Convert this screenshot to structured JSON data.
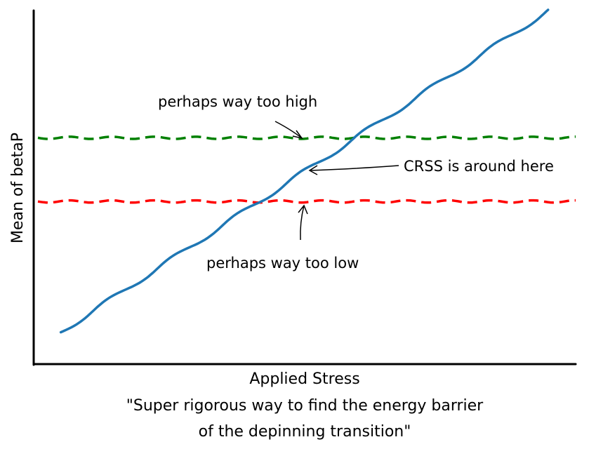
{
  "chart_data": {
    "type": "line",
    "xlabel": "Applied Stress",
    "ylabel": "Mean of betaP",
    "caption": [
      "\"Super rigorous way to find the energy barrier",
      "of the depinning transition\""
    ],
    "xlim": [
      0,
      1
    ],
    "ylim": [
      0,
      1
    ],
    "grid": false,
    "ticks": false,
    "style": "hand-drawn",
    "series": [
      {
        "values_x": [
          0.05,
          0.95,
          1.0
        ],
        "values_y": [
          0.09,
          1.0,
          1.0
        ],
        "color": "#1f77b4",
        "line": "solid"
      }
    ],
    "reference_lines": [
      {
        "y": 0.64,
        "color": "#008000",
        "line": "dashed"
      },
      {
        "y": 0.46,
        "color": "#ff0000",
        "line": "dashed"
      }
    ],
    "annotations": [
      {
        "text": "perhaps way too high",
        "x": 0.51,
        "y": 0.645
      },
      {
        "text": "CRSS is around here",
        "x": 0.51,
        "y": 0.55
      },
      {
        "text": "perhaps way too low",
        "x": 0.51,
        "y": 0.455
      }
    ]
  }
}
